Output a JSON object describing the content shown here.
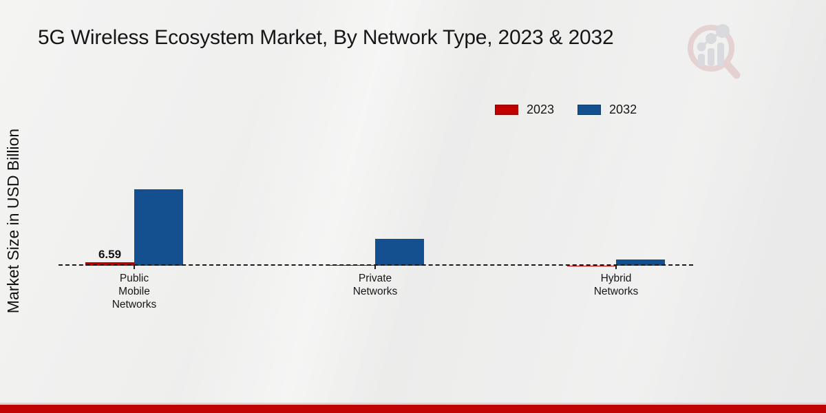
{
  "header": {
    "title": "5G Wireless Ecosystem Market, By Network Type, 2023 & 2032"
  },
  "y_axis": {
    "label": "Market Size in USD Billion"
  },
  "legend": {
    "position": "top-right",
    "items": [
      {
        "label": "2023",
        "color": "#c00000"
      },
      {
        "label": "2032",
        "color": "#144f8f"
      }
    ]
  },
  "chart_data": {
    "type": "bar",
    "title": "5G Wireless Ecosystem Market, By Network Type, 2023 & 2032",
    "xlabel": "",
    "ylabel": "Market Size in USD Billion",
    "categories": [
      "Public Mobile Networks",
      "Private Networks",
      "Hybrid Networks"
    ],
    "category_lines": [
      [
        "Public",
        "Mobile",
        "Networks"
      ],
      [
        "Private",
        "Networks"
      ],
      [
        "Hybrid",
        "Networks"
      ]
    ],
    "series": [
      {
        "name": "2023",
        "color": "#c00000",
        "values": [
          6.59,
          1.0,
          0.3
        ]
      },
      {
        "name": "2032",
        "color": "#144f8f",
        "values": [
          146,
          52,
          12
        ]
      }
    ],
    "value_labels": [
      {
        "series": 0,
        "category": 0,
        "text": "6.59"
      }
    ],
    "baseline_style": "dashed",
    "grid": false,
    "legend_position": "top-right"
  },
  "logo": {
    "icon": "magnifier-bar-chart-logo",
    "ring_color": "#ddb9bb",
    "bars_color": "#c5c9d1"
  },
  "footer": {
    "bar_color": "#c00404"
  },
  "colors": {
    "background": "#ededec",
    "baseline": "#1a1a1a",
    "text": "#161616"
  }
}
